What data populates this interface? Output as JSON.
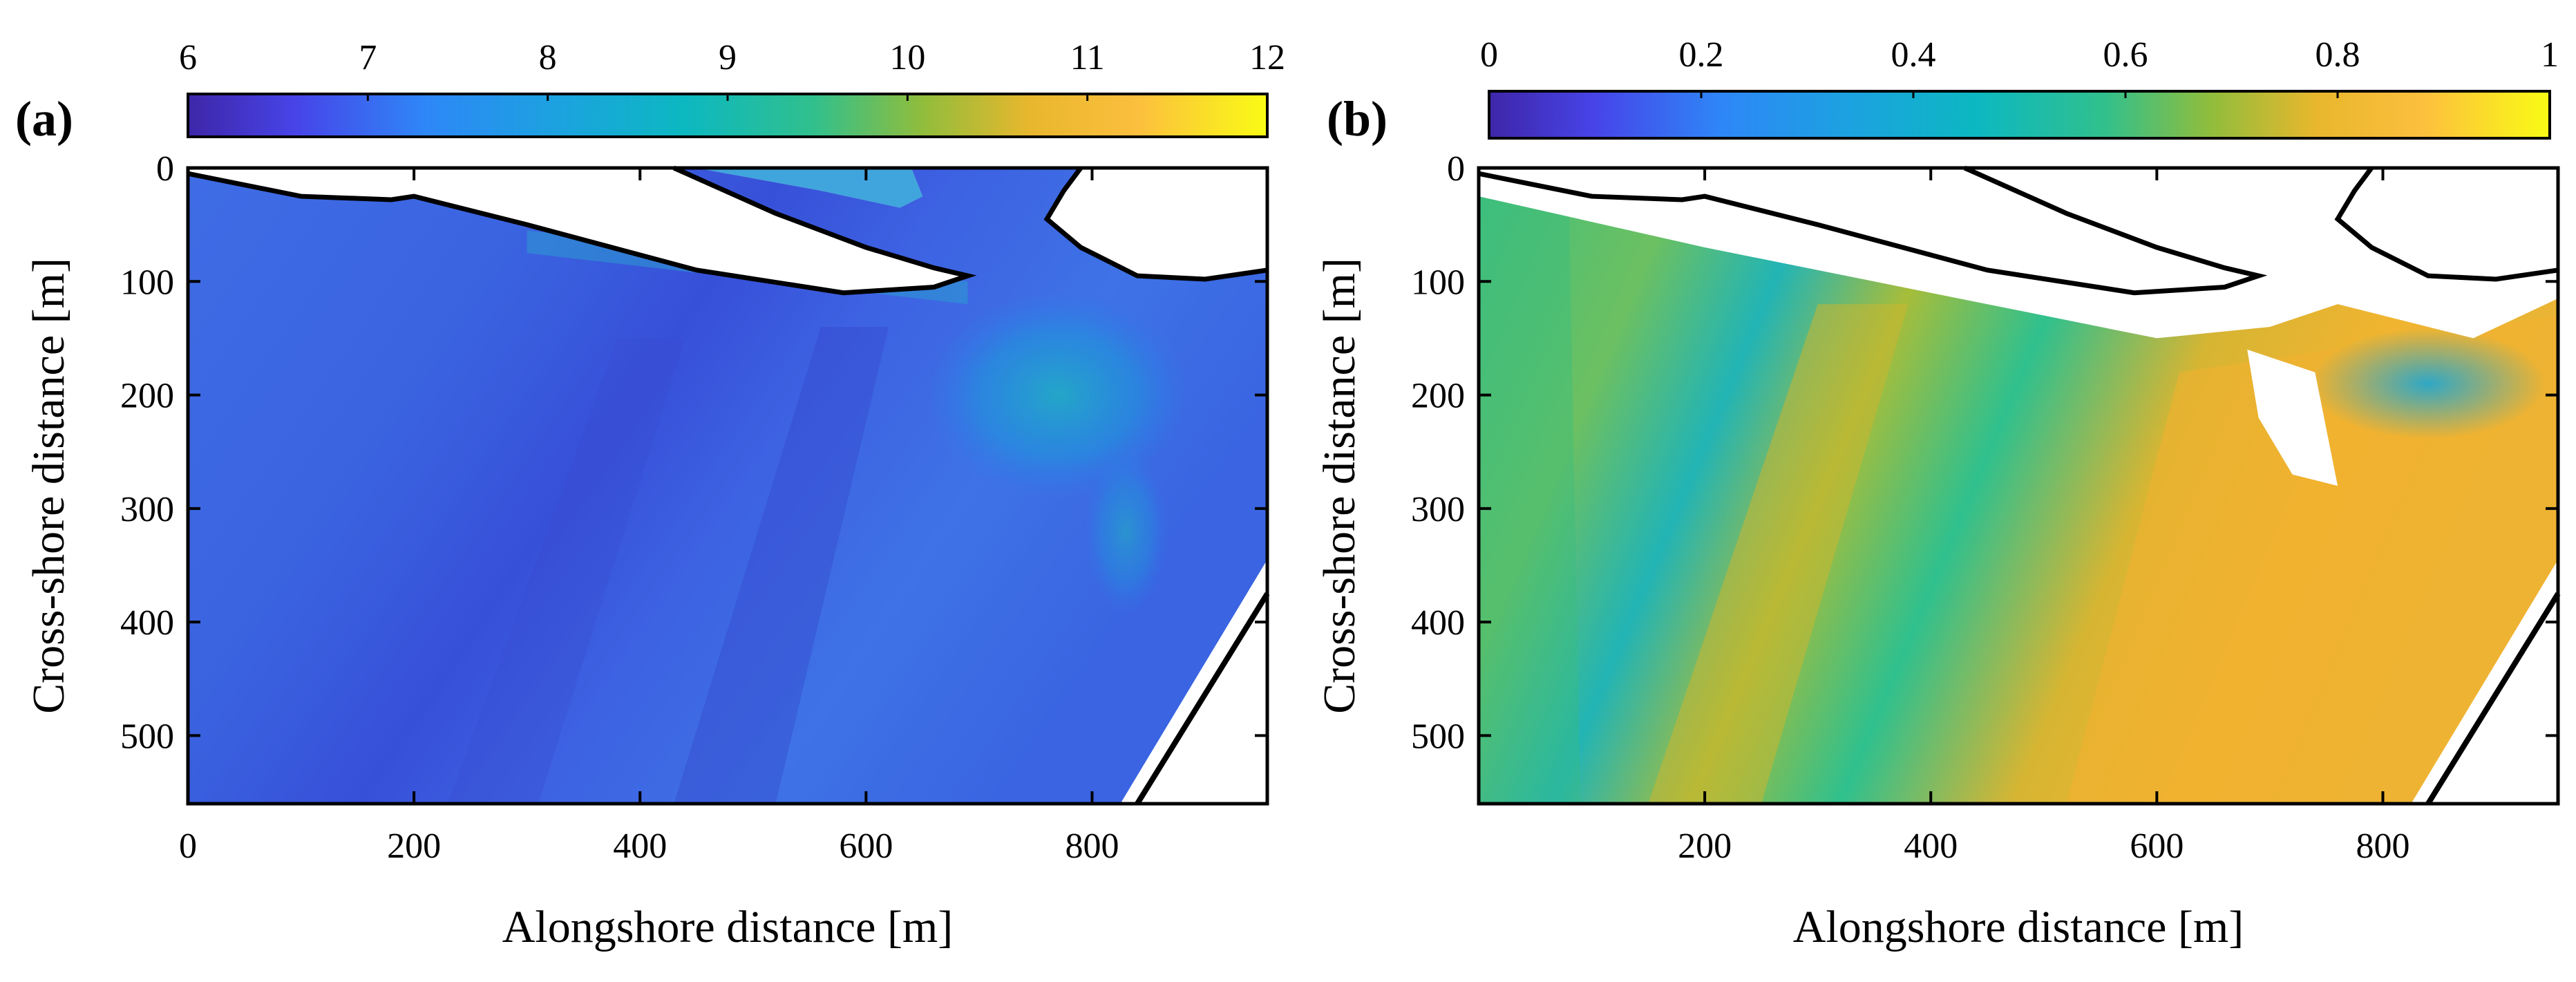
{
  "chart_data": [
    {
      "type": "heatmap",
      "panel_label": "(a)",
      "xlabel": "Alongshore distance [m]",
      "ylabel": "Cross-shore distance [m]",
      "xlim": [
        0,
        955
      ],
      "ylim": [
        0,
        560
      ],
      "y_reversed": true,
      "x_ticks": [
        0,
        200,
        400,
        600,
        800
      ],
      "x_tick_labels": [
        "0",
        "200",
        "400",
        "600",
        "800"
      ],
      "y_ticks": [
        0,
        100,
        200,
        300,
        400,
        500
      ],
      "y_tick_labels": [
        "0",
        "100",
        "200",
        "300",
        "400",
        "500"
      ],
      "colorbar": {
        "min": 6,
        "max": 12,
        "ticks": [
          6,
          7,
          8,
          9,
          10,
          11,
          12
        ],
        "tick_labels": [
          "6",
          "7",
          "8",
          "9",
          "10",
          "11",
          "12"
        ],
        "location": "top"
      },
      "field_description_values": {
        "dominant_range": [
          7,
          8.5
        ],
        "trough_min": 6.9,
        "near_inlet_max": 9.5
      },
      "colors": {
        "outline": "#000000",
        "land": "#ffffff"
      }
    },
    {
      "type": "heatmap",
      "panel_label": "(b)",
      "xlabel": "Alongshore distance [m]",
      "ylabel": "Cross-shore distance [m]",
      "xlim": [
        0,
        955
      ],
      "ylim": [
        0,
        560
      ],
      "y_reversed": true,
      "x_ticks": [
        200,
        400,
        600,
        800
      ],
      "x_tick_labels": [
        "200",
        "400",
        "600",
        "800"
      ],
      "y_ticks": [
        0,
        100,
        200,
        300,
        400,
        500
      ],
      "y_tick_labels": [
        "0",
        "100",
        "200",
        "300",
        "400",
        "500"
      ],
      "colorbar": {
        "min": 0,
        "max": 1,
        "ticks": [
          0,
          0.2,
          0.4,
          0.6,
          0.8,
          1
        ],
        "tick_labels": [
          "0",
          "0.2",
          "0.4",
          "0.6",
          "0.8",
          "1"
        ],
        "location": "top"
      },
      "field_description_values": {
        "dominant_range": [
          0.5,
          0.8
        ],
        "high_band_max": 0.8,
        "inlet_low": 0.4
      },
      "colors": {
        "outline": "#000000",
        "land": "#ffffff"
      }
    }
  ]
}
